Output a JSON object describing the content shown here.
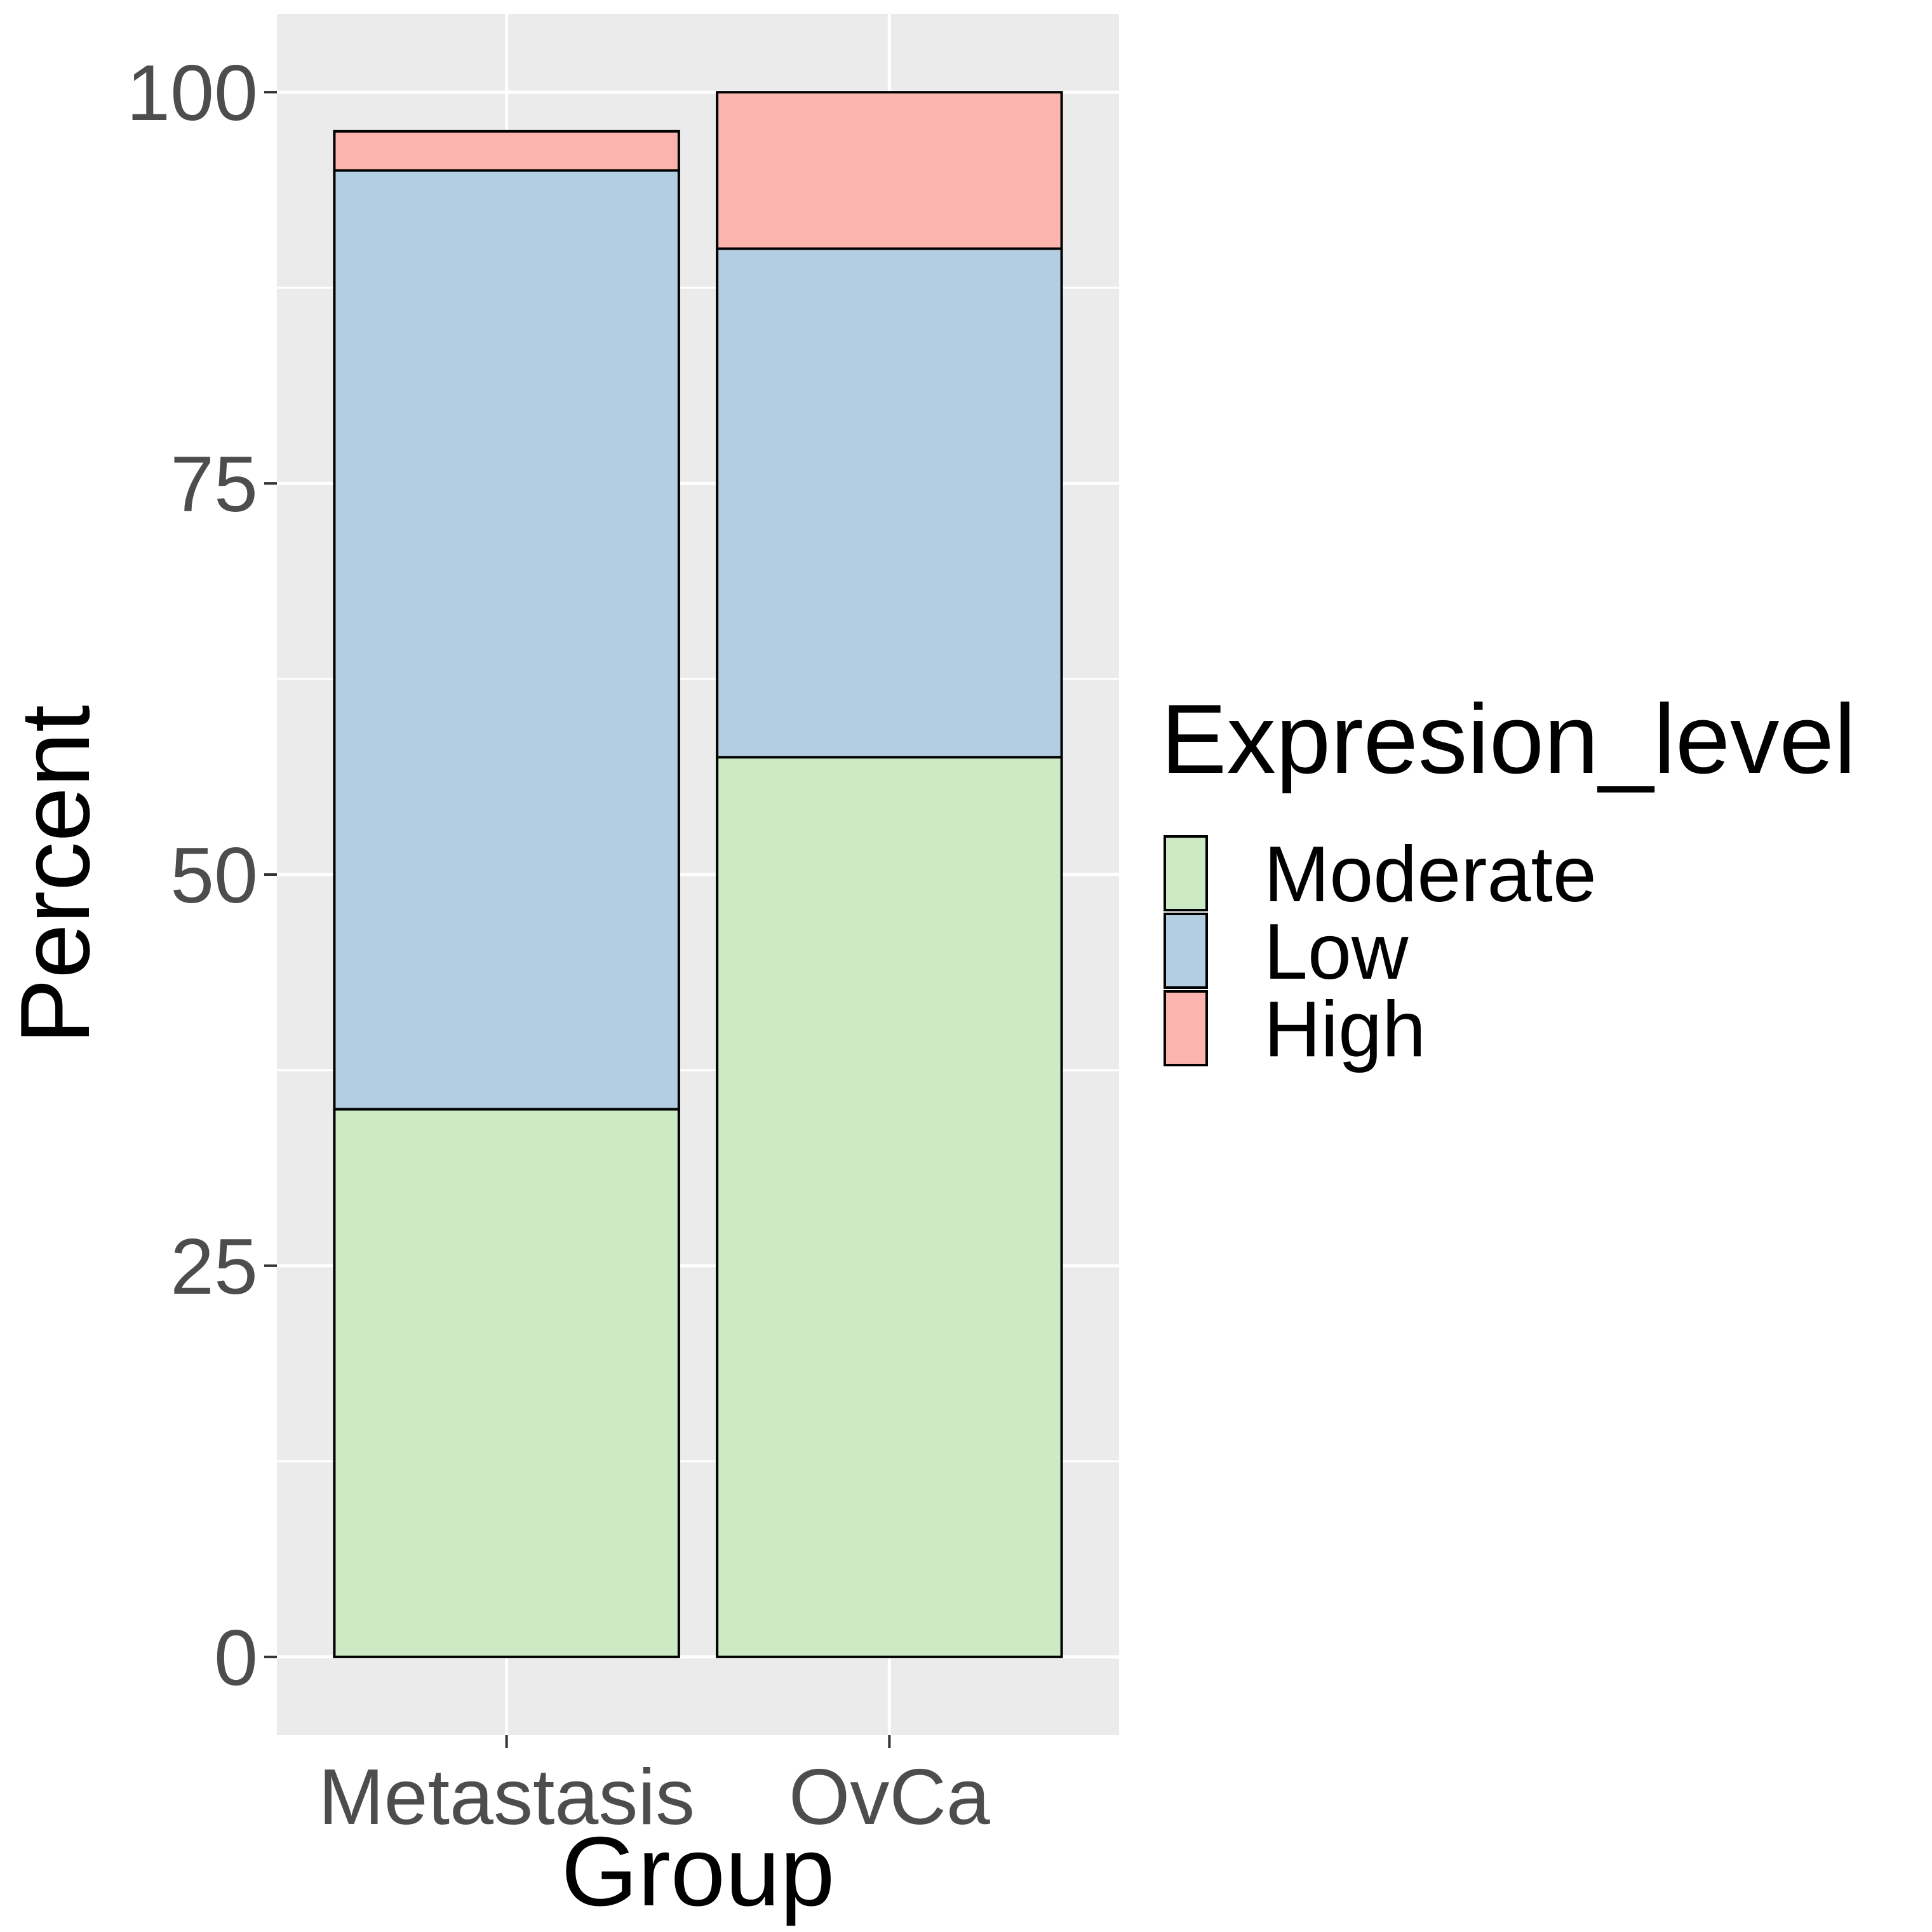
{
  "chart_data": {
    "type": "bar",
    "stacked": true,
    "categories": [
      "Metastasis",
      "OvCa"
    ],
    "series": [
      {
        "name": "Moderate",
        "values": [
          35.0,
          57.5
        ],
        "color": "#ccebc5"
      },
      {
        "name": "Low",
        "values": [
          60.0,
          32.5
        ],
        "color": "#b3cde3"
      },
      {
        "name": "High",
        "values": [
          2.5,
          10.0
        ],
        "color": "#fbb4ae"
      }
    ],
    "xlabel": "Group",
    "ylabel": "Percent",
    "ylim": [
      -5,
      105
    ],
    "yticks": [
      "0",
      "25",
      "50",
      "75",
      "100"
    ],
    "legend_title": "Expresion_level",
    "legend_position": "right",
    "grid": true,
    "panel_background": "#ebebeb",
    "gridline_color": "#ffffff",
    "bar_outline_color": "#000000"
  }
}
